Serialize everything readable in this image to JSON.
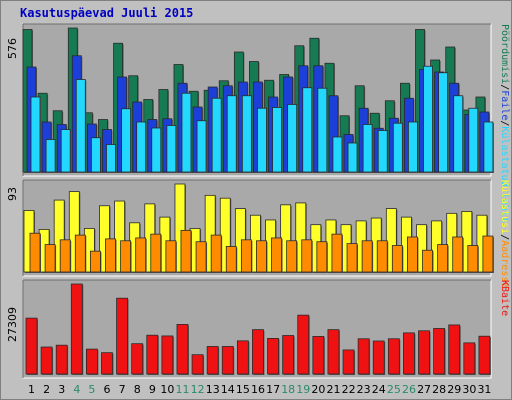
{
  "title": "Kasutuspäevad Juuli 2015",
  "colors": {
    "frame_bg": "#c0c0c0",
    "panel_bg": "#a9a9a9",
    "title": "#0000c0",
    "pages": "#167a52",
    "files": "#1b3fd8",
    "hits": "#22d8ff",
    "visits": "#ffff2a",
    "sites": "#ff8c00",
    "kbytes": "#f01212",
    "weekend": "#2a8a6a",
    "weekday": "#000000"
  },
  "chart_data": [
    {
      "type": "bar",
      "panel": "top",
      "ymax_label": "576",
      "legend": [
        {
          "text": "Pöördumisi",
          "color": "#167a52"
        },
        {
          "text": "Faile",
          "color": "#1b3fd8"
        },
        {
          "text": "Külastatud lehti",
          "color": "#22d8ff"
        }
      ],
      "ylim": [
        0,
        576
      ],
      "categories": [
        "1",
        "2",
        "3",
        "4",
        "5",
        "6",
        "7",
        "8",
        "9",
        "10",
        "11",
        "12",
        "13",
        "14",
        "15",
        "16",
        "17",
        "18",
        "19",
        "20",
        "21",
        "22",
        "23",
        "24",
        "25",
        "26",
        "27",
        "28",
        "29",
        "30",
        "31"
      ],
      "weekend_days": [
        "4",
        "5",
        "11",
        "12",
        "18",
        "19",
        "25",
        "26"
      ],
      "series": [
        {
          "name": "Pöördumisi",
          "values": [
            570,
            315,
            245,
            576,
            237,
            210,
            515,
            385,
            290,
            330,
            430,
            323,
            327,
            365,
            480,
            442,
            367,
            390,
            505,
            535,
            435,
            225,
            345,
            235,
            285,
            355,
            570,
            448,
            500,
            248,
            300
          ]
        },
        {
          "name": "Faile",
          "values": [
            420,
            200,
            190,
            465,
            192,
            170,
            380,
            280,
            210,
            213,
            355,
            260,
            340,
            345,
            360,
            360,
            300,
            380,
            425,
            425,
            305,
            150,
            255,
            175,
            215,
            295,
            410,
            400,
            355,
            230,
            240
          ]
        },
        {
          "name": "Külastatud lehti",
          "values": [
            300,
            130,
            170,
            370,
            137,
            110,
            253,
            200,
            176,
            186,
            315,
            205,
            295,
            305,
            305,
            255,
            258,
            270,
            337,
            335,
            140,
            116,
            190,
            166,
            195,
            200,
            423,
            397,
            305,
            255,
            200
          ]
        }
      ]
    },
    {
      "type": "bar",
      "panel": "middle",
      "ymax_label": "93",
      "legend": [
        {
          "text": "Külastusi",
          "color": "#ffff2a"
        },
        {
          "text": "Aadresse",
          "color": "#ff8c00"
        }
      ],
      "ylim": [
        0,
        93
      ],
      "categories": [
        "1",
        "2",
        "3",
        "4",
        "5",
        "6",
        "7",
        "8",
        "9",
        "10",
        "11",
        "12",
        "13",
        "14",
        "15",
        "16",
        "17",
        "18",
        "19",
        "20",
        "21",
        "22",
        "23",
        "24",
        "25",
        "26",
        "27",
        "28",
        "29",
        "30",
        "31"
      ],
      "series": [
        {
          "name": "Külastusi",
          "values": [
            65,
            45,
            76,
            85,
            46,
            70,
            75,
            52,
            72,
            58,
            93,
            46,
            81,
            78,
            67,
            60,
            55,
            71,
            73,
            50,
            55,
            50,
            54,
            57,
            67,
            58,
            50,
            54,
            62,
            64,
            60
          ]
        },
        {
          "name": "Aadresse",
          "values": [
            41,
            29,
            34,
            39,
            22,
            35,
            33,
            36,
            40,
            33,
            44,
            32,
            39,
            27,
            34,
            33,
            36,
            33,
            34,
            32,
            40,
            30,
            33,
            33,
            28,
            37,
            23,
            29,
            37,
            28,
            38
          ]
        }
      ]
    },
    {
      "type": "bar",
      "panel": "bottom",
      "ymax_label": "27309",
      "legend": [
        {
          "text": "KBaite",
          "color": "#f01212"
        }
      ],
      "ylim": [
        0,
        27309
      ],
      "categories": [
        "1",
        "2",
        "3",
        "4",
        "5",
        "6",
        "7",
        "8",
        "9",
        "10",
        "11",
        "12",
        "13",
        "14",
        "15",
        "16",
        "17",
        "18",
        "19",
        "20",
        "21",
        "22",
        "23",
        "24",
        "25",
        "26",
        "27",
        "28",
        "29",
        "30",
        "31"
      ],
      "series": [
        {
          "name": "KBaite",
          "values": [
            16955,
            8185,
            8740,
            27309,
            7550,
            6470,
            23000,
            9200,
            11770,
            11550,
            15050,
            5855,
            8350,
            8350,
            10060,
            13460,
            10800,
            11680,
            17860,
            11400,
            13460,
            7300,
            10690,
            10010,
            10690,
            12480,
            13110,
            13810,
            14890,
            9450,
            11470
          ]
        }
      ]
    }
  ]
}
